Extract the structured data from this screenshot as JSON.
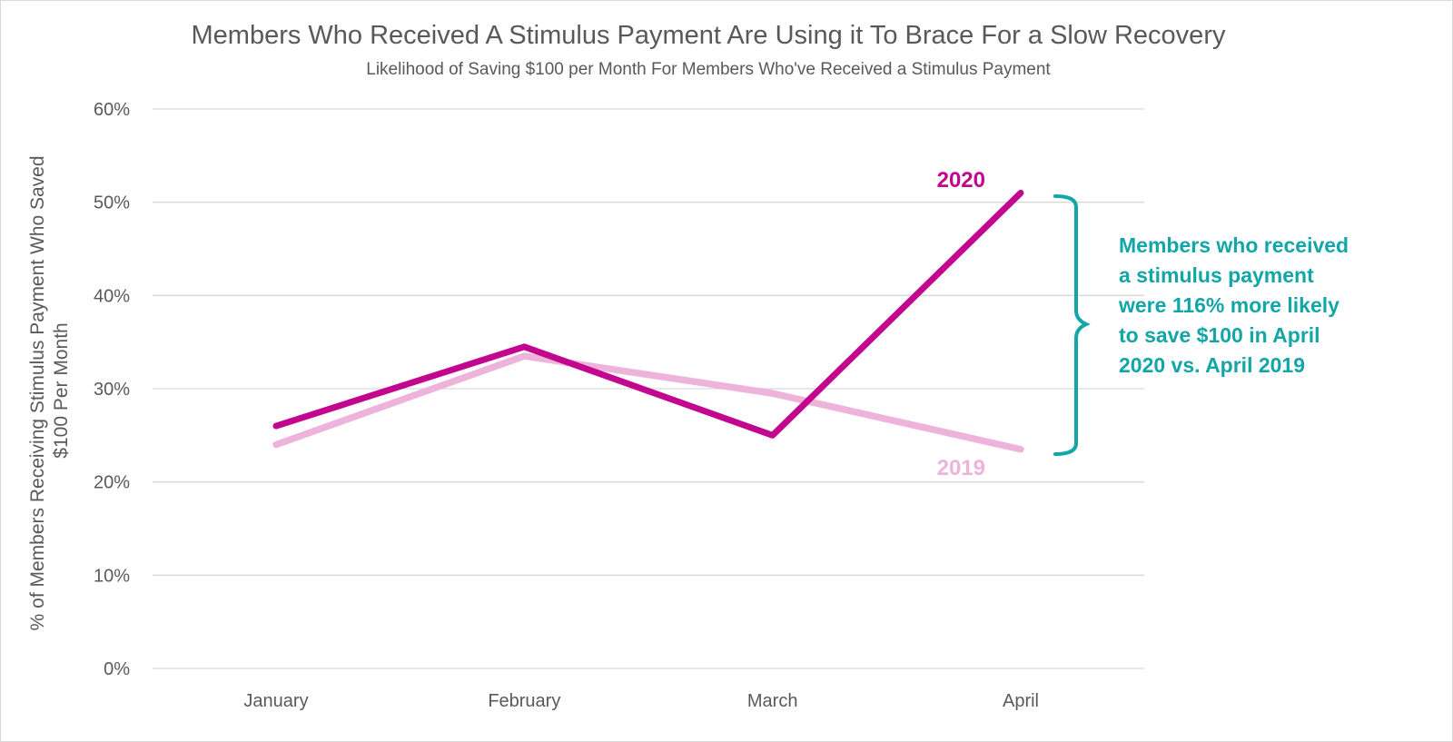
{
  "chart_data": {
    "type": "line",
    "title": "Members Who Received A Stimulus Payment Are Using it To Brace For a Slow Recovery",
    "subtitle": "Likelihood of Saving $100 per Month For Members Who've Received a Stimulus Payment",
    "ylabel_lines": [
      "% of Members Receiving Stimulus Payment Who Saved",
      "$100 Per Month"
    ],
    "xlabel": "",
    "categories": [
      "January",
      "February",
      "March",
      "April"
    ],
    "y_ticks": [
      "0%",
      "10%",
      "20%",
      "30%",
      "40%",
      "50%",
      "60%"
    ],
    "ylim": [
      0,
      60
    ],
    "grid": true,
    "series": [
      {
        "name": "2019",
        "values": [
          24,
          33.5,
          29.5,
          23.5
        ],
        "color": "#eeb3db"
      },
      {
        "name": "2020",
        "values": [
          26,
          34.5,
          25,
          51
        ],
        "color": "#c2078e"
      }
    ],
    "annotation": {
      "lines": [
        "Members who received",
        "a stimulus payment",
        "were 116% more likely",
        "to save $100 in April",
        "2020 vs. April 2019"
      ],
      "color": "#12a6a8"
    }
  }
}
